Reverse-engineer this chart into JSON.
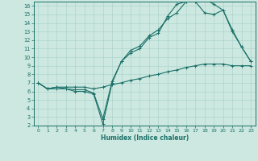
{
  "xlabel": "Humidex (Indice chaleur)",
  "bg_color": "#cce8e0",
  "line_color": "#1a7068",
  "grid_color": "#aed4cc",
  "xlim": [
    -0.5,
    23.5
  ],
  "ylim": [
    2,
    16.5
  ],
  "xticks": [
    0,
    1,
    2,
    3,
    4,
    5,
    6,
    7,
    8,
    9,
    10,
    11,
    12,
    13,
    14,
    15,
    16,
    17,
    18,
    19,
    20,
    21,
    22,
    23
  ],
  "yticks": [
    2,
    3,
    4,
    5,
    6,
    7,
    8,
    9,
    10,
    11,
    12,
    13,
    14,
    15,
    16
  ],
  "line1_x": [
    0,
    1,
    2,
    3,
    4,
    5,
    6,
    7,
    8,
    9,
    10,
    11,
    12,
    13,
    14,
    15,
    16,
    17,
    18,
    19,
    20,
    21,
    22,
    23
  ],
  "line1_y": [
    7.0,
    6.3,
    6.3,
    6.3,
    6.0,
    6.0,
    5.7,
    2.2,
    7.0,
    9.5,
    10.5,
    11.0,
    12.3,
    12.8,
    14.8,
    16.2,
    16.5,
    16.8,
    16.8,
    16.2,
    15.5,
    13.0,
    11.2,
    9.5
  ],
  "line2_x": [
    0,
    1,
    2,
    3,
    4,
    5,
    6,
    7,
    8,
    9,
    10,
    11,
    12,
    13,
    14,
    15,
    16,
    17,
    18,
    19,
    20,
    21,
    22,
    23
  ],
  "line2_y": [
    7.0,
    6.3,
    6.5,
    6.3,
    6.2,
    6.2,
    5.8,
    2.8,
    7.2,
    9.5,
    10.8,
    11.3,
    12.5,
    13.2,
    14.5,
    15.2,
    16.5,
    16.5,
    15.2,
    15.0,
    15.5,
    13.2,
    11.2,
    9.5
  ],
  "line3_x": [
    0,
    1,
    2,
    3,
    4,
    5,
    6,
    7,
    8,
    9,
    10,
    11,
    12,
    13,
    14,
    15,
    16,
    17,
    18,
    19,
    20,
    21,
    22,
    23
  ],
  "line3_y": [
    7.0,
    6.3,
    6.5,
    6.5,
    6.5,
    6.5,
    6.3,
    6.5,
    6.8,
    7.0,
    7.3,
    7.5,
    7.8,
    8.0,
    8.3,
    8.5,
    8.8,
    9.0,
    9.2,
    9.2,
    9.2,
    9.0,
    9.0,
    9.0
  ]
}
